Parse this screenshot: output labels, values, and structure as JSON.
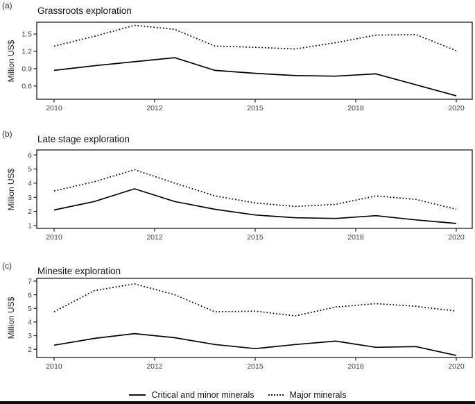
{
  "colors": {
    "background": "#ffffff",
    "line": "#000000",
    "axis": "#2b2b2b",
    "tick_text": "#3f3f3f",
    "title_text": "#141414"
  },
  "legend": {
    "items": [
      {
        "label": "Critical and minor minerals",
        "style": "solid"
      },
      {
        "label": "Major minerals",
        "style": "dotted"
      }
    ]
  },
  "chart_data": [
    {
      "type": "line",
      "panel": "(a)",
      "title": "Grassroots exploration",
      "ylabel": "Million US$",
      "x": [
        2010,
        2011,
        2012,
        2013,
        2014,
        2015,
        2016,
        2017,
        2018,
        2019,
        2020
      ],
      "x_tick_labels": [
        "2010",
        "2012",
        "2015",
        "2018",
        "2020"
      ],
      "y_ticks": [
        0.6,
        0.9,
        1.2,
        1.5
      ],
      "y_tick_labels": [
        "0.6",
        "0.9",
        "1.2",
        "1.5"
      ],
      "ylim": [
        0.37,
        1.704
      ],
      "grid": "off",
      "series": [
        {
          "name": "Critical and minor minerals",
          "style": "solid",
          "values": [
            0.87,
            0.95,
            1.02,
            1.09,
            0.87,
            0.82,
            0.78,
            0.77,
            0.81,
            0.62,
            0.43
          ]
        },
        {
          "name": "Major minerals",
          "style": "dotted",
          "values": [
            1.29,
            1.46,
            1.65,
            1.58,
            1.29,
            1.27,
            1.24,
            1.35,
            1.48,
            1.49,
            1.21
          ]
        }
      ]
    },
    {
      "type": "line",
      "panel": "(b)",
      "title": "Late stage exploration",
      "ylabel": "Million US$",
      "x": [
        2010,
        2011,
        2012,
        2013,
        2014,
        2015,
        2016,
        2017,
        2018,
        2019,
        2020
      ],
      "x_tick_labels": [
        "2010",
        "2012",
        "2015",
        "2018",
        "2020"
      ],
      "y_ticks": [
        1,
        2,
        3,
        4,
        5,
        6
      ],
      "y_tick_labels": [
        "1",
        "2",
        "3",
        "4",
        "5",
        "6"
      ],
      "ylim": [
        0.8,
        6.35
      ],
      "grid": "off",
      "series": [
        {
          "name": "Critical and minor minerals",
          "style": "solid",
          "values": [
            2.1,
            2.7,
            3.6,
            2.7,
            2.15,
            1.75,
            1.55,
            1.5,
            1.7,
            1.4,
            1.15
          ]
        },
        {
          "name": "Major minerals",
          "style": "dotted",
          "values": [
            3.45,
            4.1,
            4.95,
            4.0,
            3.1,
            2.6,
            2.35,
            2.5,
            3.1,
            2.85,
            2.15
          ]
        }
      ]
    },
    {
      "type": "line",
      "panel": "(c)",
      "title": "Minesite exploration",
      "ylabel": "Million US$",
      "x": [
        2010,
        2011,
        2012,
        2013,
        2014,
        2015,
        2016,
        2017,
        2018,
        2019,
        2020
      ],
      "x_tick_labels": [
        "2010",
        "2012",
        "2015",
        "2018",
        "2020"
      ],
      "y_ticks": [
        2,
        3,
        4,
        5,
        6,
        7
      ],
      "y_tick_labels": [
        "2",
        "3",
        "4",
        "5",
        "6",
        "7"
      ],
      "ylim": [
        1.4,
        7.2
      ],
      "grid": "off",
      "series": [
        {
          "name": "Critical and minor minerals",
          "style": "solid",
          "values": [
            2.3,
            2.8,
            3.15,
            2.85,
            2.35,
            2.05,
            2.35,
            2.6,
            2.15,
            2.2,
            1.55
          ]
        },
        {
          "name": "Major minerals",
          "style": "dotted",
          "values": [
            4.75,
            6.3,
            6.8,
            6.0,
            4.75,
            4.8,
            4.45,
            5.1,
            5.35,
            5.15,
            4.8
          ]
        }
      ]
    }
  ]
}
